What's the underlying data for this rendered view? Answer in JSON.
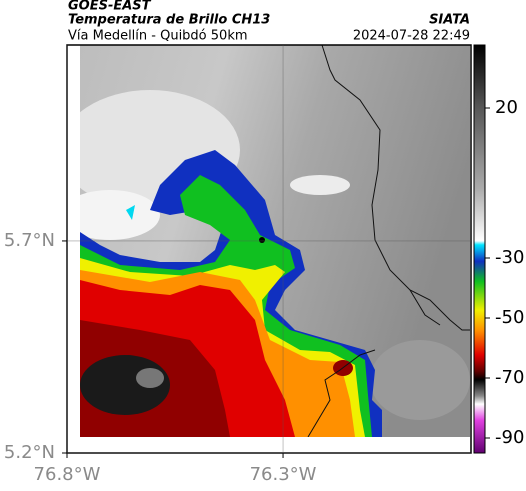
{
  "header": {
    "satellite": "GOES-EAST",
    "product": "Temperatura de Brillo CH13",
    "route": "Vía Medellín - Quibdó 50km",
    "source": "SIATA",
    "timestamp": "2024-07-28 22:49"
  },
  "map": {
    "xlim": [
      -76.8,
      -75.865
    ],
    "ylim": [
      5.2,
      6.162
    ],
    "xticks": [
      {
        "value": -76.8,
        "label": "76.8°W"
      },
      {
        "value": -76.3,
        "label": "76.3°W"
      }
    ],
    "yticks": [
      {
        "value": 5.2,
        "label": "5.2°N"
      },
      {
        "value": 5.7,
        "label": "5.7°N"
      }
    ],
    "grid": true
  },
  "colorbar": {
    "lim": [
      41,
      -95
    ],
    "ticks": [
      20,
      -30,
      -50,
      -70,
      -90
    ]
  }
}
